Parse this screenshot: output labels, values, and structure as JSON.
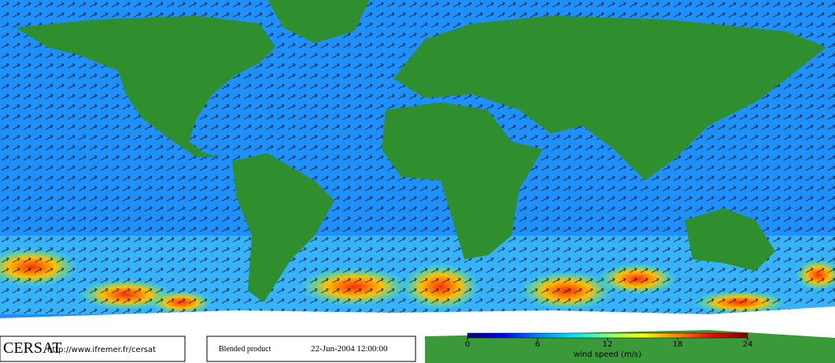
{
  "branding": {
    "logo": "CERSAT",
    "url": "http://www.ifremer.fr/cersat"
  },
  "product": {
    "name": "Blended product",
    "timestamp": "22-Jun-2004 12:00:00"
  },
  "colorbar": {
    "label": "wind speed (m/s)",
    "lim": [
      0,
      24
    ],
    "ticks": [
      0,
      6,
      12,
      18,
      24
    ],
    "colors": [
      "#00007f",
      "#0000ff",
      "#0080ff",
      "#00e0ff",
      "#80ff80",
      "#ffff00",
      "#ff8000",
      "#ff0000",
      "#7f0000"
    ]
  }
}
